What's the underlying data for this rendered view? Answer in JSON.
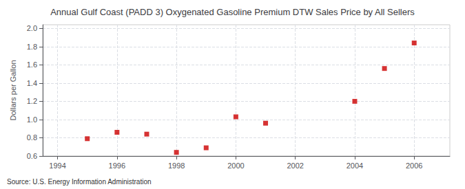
{
  "chart_data": {
    "type": "scatter",
    "title": "Annual Gulf Coast (PADD 3) Oxygenated Gasoline Premium DTW Sales Price by All Sellers",
    "ylabel": "Dollars per Gallon",
    "source": "Source: U.S. Energy Information Administration",
    "x": [
      1995,
      1996,
      1997,
      1998,
      1999,
      2000,
      2001,
      2004,
      2005,
      2006
    ],
    "values": [
      0.79,
      0.86,
      0.84,
      0.64,
      0.69,
      1.03,
      0.96,
      1.2,
      1.56,
      1.84
    ],
    "color": "#cc0000",
    "marker": "square",
    "xlim": [
      1993.5,
      2007.2
    ],
    "xticks": [
      1994,
      1996,
      1998,
      2000,
      2002,
      2004,
      2006
    ],
    "ylim": [
      0.6,
      2.04
    ],
    "yticks": [
      0.6,
      0.8,
      {
        "value": 1.0,
        "label": "1.0"
      },
      1.2,
      1.4,
      1.6,
      1.8,
      {
        "value": 2.0,
        "label": "2.0"
      }
    ],
    "grid": true
  }
}
